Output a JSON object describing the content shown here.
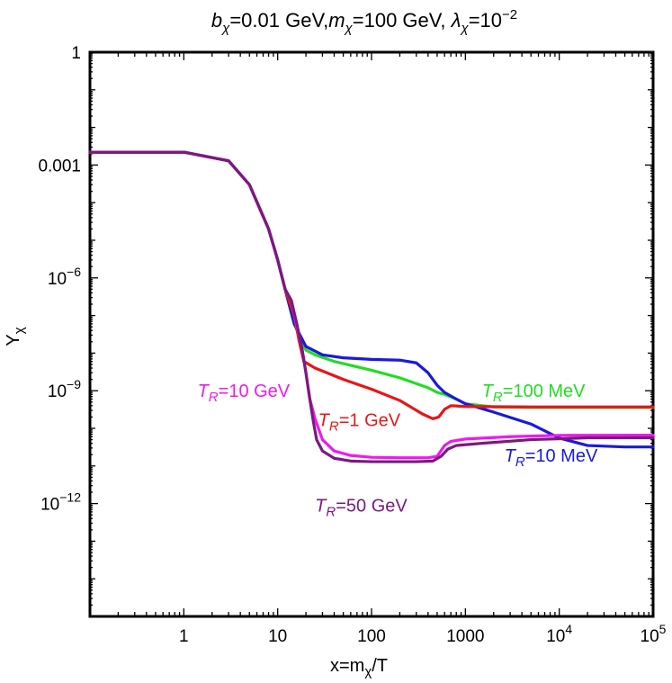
{
  "chart_data": {
    "type": "line",
    "title": "bχ=0.01 GeV,mχ=100 GeV, λχ=10−2",
    "title_parts": {
      "b": "b",
      "b_sub": "χ",
      "b_val": "=0.01 GeV,",
      "m": "m",
      "m_sub": "χ",
      "m_val": "=100 GeV, ",
      "l": "λ",
      "l_sub": "χ",
      "l_val": "=10",
      "l_exp": "−2"
    },
    "xlabel": "x=mχ/T",
    "xlabel_parts": {
      "pre": "x=m",
      "sub": "χ",
      "post": "/T"
    },
    "ylabel": "Yχ",
    "ylabel_parts": {
      "main": "Y",
      "sub": "χ"
    },
    "x_scale": "log",
    "y_scale": "log",
    "xlim": [
      0.1,
      100000
    ],
    "ylim": [
      1e-15,
      1
    ],
    "x_ticks": [
      {
        "value": 1,
        "label": "1"
      },
      {
        "value": 10,
        "label": "10"
      },
      {
        "value": 100,
        "label": "100"
      },
      {
        "value": 1000,
        "label": "1000"
      },
      {
        "value": 10000,
        "base": "10",
        "exp": "4"
      },
      {
        "value": 100000,
        "base": "10",
        "exp": "5"
      }
    ],
    "y_ticks": [
      {
        "value": 1,
        "label": "1"
      },
      {
        "value": 0.001,
        "label": "0.001"
      },
      {
        "value": 1e-06,
        "base": "10",
        "exp": "−6"
      },
      {
        "value": 1e-09,
        "base": "10",
        "exp": "−9"
      },
      {
        "value": 1e-12,
        "base": "10",
        "exp": "−12"
      }
    ],
    "series": [
      {
        "name": "TR=100 MeV",
        "color": "#22dd22",
        "points": [
          [
            0.1,
            0.0022
          ],
          [
            1,
            0.0022
          ],
          [
            3,
            0.0013
          ],
          [
            5,
            0.0003
          ],
          [
            8,
            2e-05
          ],
          [
            10,
            3e-06
          ],
          [
            12,
            5e-07
          ],
          [
            15,
            6e-08
          ],
          [
            20,
            1.2e-08
          ],
          [
            25,
            9e-09
          ],
          [
            40,
            6e-09
          ],
          [
            100,
            3.5e-09
          ],
          [
            200,
            2.2e-09
          ],
          [
            400,
            1.2e-09
          ],
          [
            500,
            9e-10
          ],
          [
            600,
            8e-10
          ],
          [
            800,
            6e-10
          ],
          [
            1000,
            4.5e-10
          ],
          [
            2000,
            3.7e-10
          ],
          [
            5000,
            3.6e-10
          ],
          [
            100000,
            3.6e-10
          ]
        ]
      },
      {
        "name": "TR=10 MeV",
        "color": "#1a1adc",
        "points": [
          [
            0.1,
            0.0022
          ],
          [
            1,
            0.0022
          ],
          [
            3,
            0.0013
          ],
          [
            5,
            0.0003
          ],
          [
            8,
            2e-05
          ],
          [
            10,
            3e-06
          ],
          [
            12,
            5e-07
          ],
          [
            15,
            6e-08
          ],
          [
            20,
            1.5e-08
          ],
          [
            30,
            9e-09
          ],
          [
            50,
            7.5e-09
          ],
          [
            100,
            6.8e-09
          ],
          [
            200,
            6.5e-09
          ],
          [
            300,
            5.5e-09
          ],
          [
            400,
            3e-09
          ],
          [
            500,
            1.4e-09
          ],
          [
            600,
            9e-10
          ],
          [
            800,
            6e-10
          ],
          [
            1000,
            4.5e-10
          ],
          [
            2000,
            2.7e-10
          ],
          [
            5000,
            1.3e-10
          ],
          [
            10000,
            5.5e-11
          ],
          [
            20000,
            3.5e-11
          ],
          [
            50000,
            3.2e-11
          ],
          [
            100000,
            3.2e-11
          ]
        ]
      },
      {
        "name": "TR=1 GeV",
        "color": "#e81616",
        "points": [
          [
            0.1,
            0.0022
          ],
          [
            1,
            0.0022
          ],
          [
            3,
            0.0013
          ],
          [
            5,
            0.0003
          ],
          [
            8,
            2e-05
          ],
          [
            10,
            3e-06
          ],
          [
            12,
            5e-07
          ],
          [
            15,
            1e-07
          ],
          [
            17,
            2e-08
          ],
          [
            19,
            6e-09
          ],
          [
            25,
            4e-09
          ],
          [
            50,
            2e-09
          ],
          [
            100,
            1.1e-09
          ],
          [
            200,
            5.5e-10
          ],
          [
            350,
            2.4e-10
          ],
          [
            450,
            1.8e-10
          ],
          [
            520,
            2e-10
          ],
          [
            600,
            3.2e-10
          ],
          [
            700,
            4e-10
          ],
          [
            1000,
            3.8e-10
          ],
          [
            5000,
            3.7e-10
          ],
          [
            100000,
            3.7e-10
          ]
        ]
      },
      {
        "name": "TR=10 GeV",
        "color": "#ee1aee",
        "points": [
          [
            0.1,
            0.0022
          ],
          [
            1,
            0.0022
          ],
          [
            3,
            0.0013
          ],
          [
            5,
            0.0003
          ],
          [
            8,
            2e-05
          ],
          [
            10,
            3e-06
          ],
          [
            12,
            5e-07
          ],
          [
            14,
            2.5e-07
          ],
          [
            16,
            5e-08
          ],
          [
            18,
            1.5e-08
          ],
          [
            20,
            3e-09
          ],
          [
            22,
            6e-10
          ],
          [
            25,
            1.8e-10
          ],
          [
            30,
            5e-11
          ],
          [
            40,
            2.5e-11
          ],
          [
            60,
            1.9e-11
          ],
          [
            100,
            1.7e-11
          ],
          [
            200,
            1.65e-11
          ],
          [
            400,
            1.65e-11
          ],
          [
            500,
            1.8e-11
          ],
          [
            600,
            3.5e-11
          ],
          [
            700,
            4.5e-11
          ],
          [
            1000,
            5.2e-11
          ],
          [
            3000,
            6e-11
          ],
          [
            10000,
            6.5e-11
          ],
          [
            100000,
            6.6e-11
          ]
        ]
      },
      {
        "name": "TR=50 GeV",
        "color": "#7a1a80",
        "points": [
          [
            0.1,
            0.0022
          ],
          [
            1,
            0.0022
          ],
          [
            3,
            0.0013
          ],
          [
            5,
            0.0003
          ],
          [
            8,
            2e-05
          ],
          [
            10,
            3e-06
          ],
          [
            12,
            5e-07
          ],
          [
            14,
            2.5e-07
          ],
          [
            16,
            6e-08
          ],
          [
            18,
            1.5e-08
          ],
          [
            20,
            3e-09
          ],
          [
            22,
            6e-10
          ],
          [
            24,
            1.5e-10
          ],
          [
            26,
            5e-11
          ],
          [
            30,
            2.5e-11
          ],
          [
            40,
            1.6e-11
          ],
          [
            60,
            1.35e-11
          ],
          [
            100,
            1.3e-11
          ],
          [
            300,
            1.3e-11
          ],
          [
            450,
            1.35e-11
          ],
          [
            550,
            1.8e-11
          ],
          [
            650,
            2.8e-11
          ],
          [
            800,
            3.5e-11
          ],
          [
            1500,
            4e-11
          ],
          [
            5000,
            5e-11
          ],
          [
            20000,
            5.6e-11
          ],
          [
            100000,
            5.6e-11
          ]
        ]
      }
    ],
    "annotations": [
      {
        "series": "TR=10 GeV",
        "color": "#ee1aee",
        "x": 1.4,
        "y": 1e-09,
        "T": "T",
        "sub": "R",
        "val": "=10 GeV",
        "anchor": "start"
      },
      {
        "series": "TR=1 GeV",
        "color": "#e81616",
        "x": 27,
        "y": 1.7e-10,
        "T": "T",
        "sub": "R",
        "val": "=1 GeV",
        "anchor": "start"
      },
      {
        "series": "TR=100 MeV",
        "color": "#22dd22",
        "x": 1500,
        "y": 1e-09,
        "T": "T",
        "sub": "R",
        "val": "=100 MeV",
        "anchor": "start"
      },
      {
        "series": "TR=10 MeV",
        "color": "#1a1adc",
        "x": 2600,
        "y": 1.9e-11,
        "T": "T",
        "sub": "R",
        "val": "=10 MeV",
        "anchor": "start"
      },
      {
        "series": "TR=50 GeV",
        "color": "#7a1a80",
        "x": 25,
        "y": 9e-13,
        "T": "T",
        "sub": "R",
        "val": "=50 GeV",
        "anchor": "start"
      }
    ]
  }
}
